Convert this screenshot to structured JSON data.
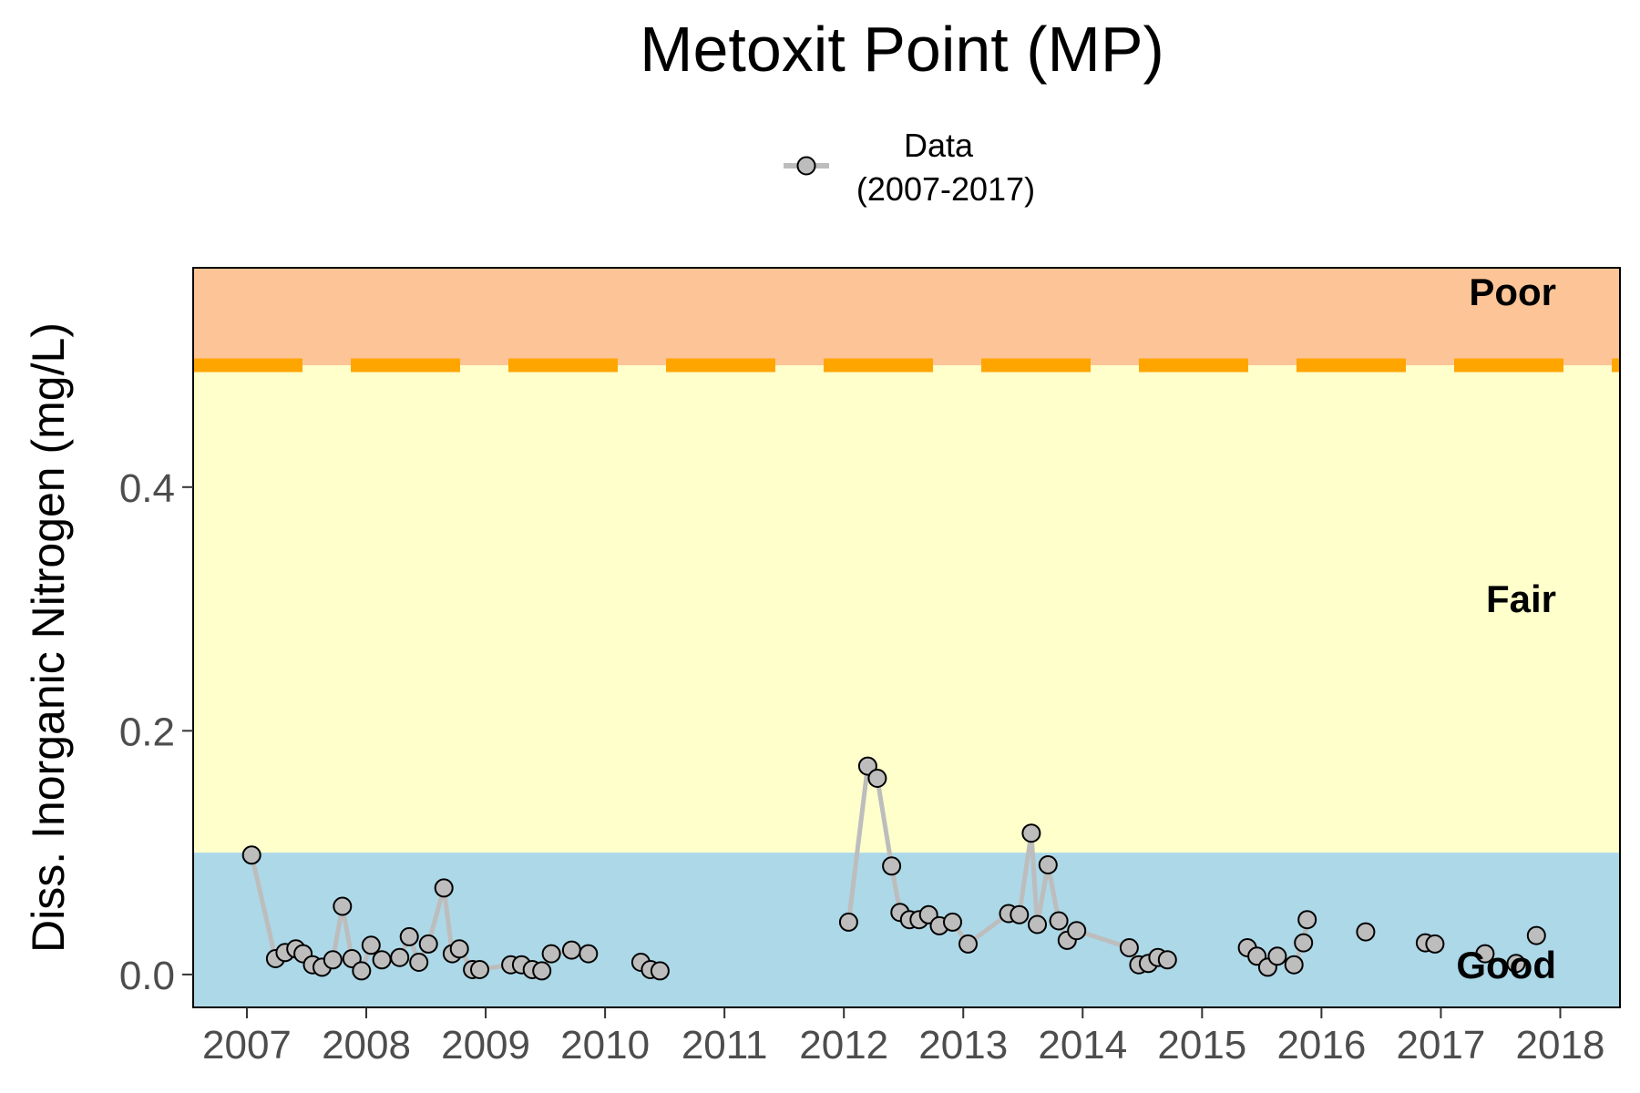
{
  "chart_data": {
    "type": "line",
    "title": "Metoxit Point (MP)",
    "xlabel": "",
    "ylabel": "Diss. Inorganic Nitrogen (mg/L)",
    "xlim": [
      2006.55,
      2018.5
    ],
    "ylim": [
      -0.027,
      0.58
    ],
    "x_ticks": [
      "2007",
      "2008",
      "2009",
      "2010",
      "2011",
      "2012",
      "2013",
      "2014",
      "2015",
      "2016",
      "2017",
      "2018"
    ],
    "y_ticks": [
      "0.0",
      "0.2",
      "0.4"
    ],
    "grid": false,
    "legend": {
      "placement": "top",
      "entries": [
        {
          "label": "Data",
          "sublabel": "(2007-2017)"
        }
      ]
    },
    "threshold": {
      "value": 0.5,
      "style": "dashed",
      "color": "#ffa500"
    },
    "zones": [
      {
        "label": "Poor",
        "from": 0.5,
        "to": 0.58,
        "color": "#fdc597"
      },
      {
        "label": "Fair",
        "from": 0.1,
        "to": 0.5,
        "color": "#ffffcc"
      },
      {
        "label": "Good",
        "from": -0.027,
        "to": 0.1,
        "color": "#acd8e8"
      }
    ],
    "colors": {
      "line": "#bdbdbd",
      "marker_fill": "#bdbdbd",
      "marker_edge": "#000000"
    },
    "series": [
      {
        "name": "Data",
        "segments": [
          [
            [
              2007.04,
              0.098
            ],
            [
              2007.24,
              0.013
            ],
            [
              2007.32,
              0.018
            ],
            [
              2007.41,
              0.021
            ],
            [
              2007.47,
              0.017
            ],
            [
              2007.55,
              0.008
            ],
            [
              2007.63,
              0.006
            ],
            [
              2007.72,
              0.012
            ],
            [
              2007.8,
              0.056
            ],
            [
              2007.88,
              0.013
            ],
            [
              2007.96,
              0.003
            ],
            [
              2008.04,
              0.024
            ],
            [
              2008.13,
              0.012
            ],
            [
              2008.28,
              0.014
            ],
            [
              2008.36,
              0.031
            ],
            [
              2008.44,
              0.01
            ],
            [
              2008.52,
              0.025
            ],
            [
              2008.65,
              0.071
            ],
            [
              2008.72,
              0.017
            ],
            [
              2008.78,
              0.021
            ],
            [
              2008.89,
              0.004
            ],
            [
              2008.95,
              0.004
            ],
            [
              2009.21,
              0.008
            ],
            [
              2009.3,
              0.008
            ],
            [
              2009.39,
              0.004
            ],
            [
              2009.47,
              0.003
            ],
            [
              2009.55,
              0.017
            ],
            [
              2009.72,
              0.02
            ],
            [
              2009.86,
              0.017
            ]
          ],
          [
            [
              2010.3,
              0.01
            ],
            [
              2010.38,
              0.004
            ],
            [
              2010.46,
              0.003
            ]
          ],
          [
            [
              2012.04,
              0.043
            ],
            [
              2012.2,
              0.171
            ],
            [
              2012.28,
              0.161
            ],
            [
              2012.4,
              0.089
            ],
            [
              2012.47,
              0.051
            ],
            [
              2012.55,
              0.045
            ],
            [
              2012.63,
              0.045
            ],
            [
              2012.71,
              0.049
            ],
            [
              2012.8,
              0.04
            ],
            [
              2012.91,
              0.043
            ],
            [
              2013.04,
              0.025
            ],
            [
              2013.38,
              0.05
            ],
            [
              2013.47,
              0.049
            ],
            [
              2013.57,
              0.116
            ],
            [
              2013.62,
              0.041
            ],
            [
              2013.71,
              0.09
            ],
            [
              2013.8,
              0.044
            ],
            [
              2013.87,
              0.028
            ],
            [
              2013.95,
              0.036
            ],
            [
              2014.39,
              0.022
            ],
            [
              2014.47,
              0.008
            ],
            [
              2014.55,
              0.009
            ],
            [
              2014.63,
              0.014
            ],
            [
              2014.71,
              0.012
            ]
          ],
          [
            [
              2015.38,
              0.022
            ],
            [
              2015.46,
              0.015
            ],
            [
              2015.55,
              0.006
            ],
            [
              2015.63,
              0.015
            ],
            [
              2015.77,
              0.008
            ],
            [
              2015.85,
              0.026
            ],
            [
              2015.88,
              0.045
            ]
          ],
          [
            [
              2016.37,
              0.035
            ]
          ],
          [
            [
              2016.87,
              0.026
            ],
            [
              2016.95,
              0.025
            ]
          ],
          [
            [
              2017.37,
              0.017
            ]
          ],
          [
            [
              2017.63,
              0.009
            ]
          ],
          [
            [
              2017.8,
              0.032
            ]
          ]
        ]
      }
    ]
  }
}
